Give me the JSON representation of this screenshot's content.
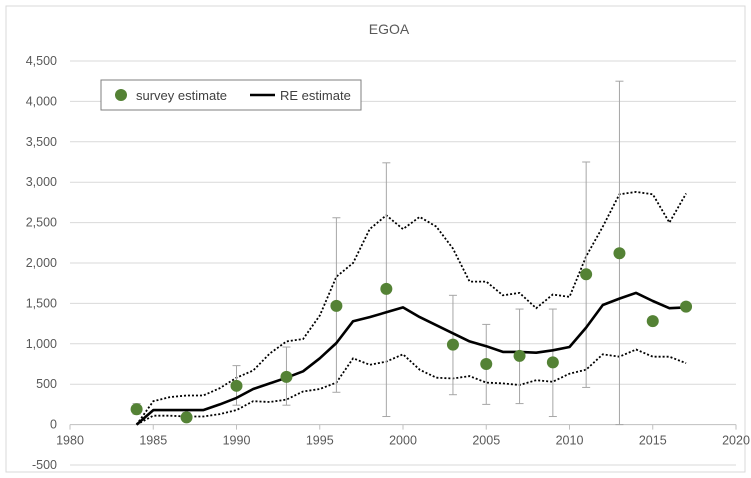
{
  "chart_data": {
    "type": "scatter",
    "title": "EGOA",
    "xlabel": "",
    "ylabel": "",
    "xlim": [
      1980,
      2020
    ],
    "ylim": [
      -500,
      4500
    ],
    "x_ticks": [
      1980,
      1985,
      1990,
      1995,
      2000,
      2005,
      2010,
      2015,
      2020
    ],
    "y_ticks": [
      -500,
      0,
      500,
      1000,
      1500,
      2000,
      2500,
      3000,
      3500,
      4000,
      4500
    ],
    "y_tick_labels": [
      "-500",
      "0",
      "500",
      "1,000",
      "1,500",
      "2,000",
      "2,500",
      "3,000",
      "3,500",
      "4,000",
      "4,500"
    ],
    "grid": "horizontal",
    "legend_position": "top-left",
    "colors": {
      "survey": "#548235",
      "re": "#000000",
      "ci": "#000000",
      "error_bar": "#a6a6a6"
    },
    "series": [
      {
        "name": "survey estimate",
        "type": "scatter",
        "x": [
          1984,
          1987,
          1990,
          1993,
          1996,
          1999,
          2003,
          2005,
          2007,
          2009,
          2011,
          2013,
          2015,
          2017
        ],
        "values": [
          190,
          90,
          480,
          590,
          1470,
          1680,
          990,
          750,
          850,
          770,
          1860,
          2120,
          1280,
          1460
        ],
        "lower": [
          130,
          40,
          240,
          240,
          400,
          100,
          370,
          250,
          260,
          100,
          460,
          0,
          1280,
          1460
        ],
        "upper": [
          260,
          150,
          730,
          960,
          2560,
          3240,
          1600,
          1240,
          1430,
          1430,
          3250,
          4250,
          1280,
          1460
        ]
      },
      {
        "name": "RE estimate",
        "type": "line",
        "x": [
          1984,
          1985,
          1986,
          1987,
          1988,
          1989,
          1990,
          1991,
          1992,
          1993,
          1994,
          1995,
          1996,
          1997,
          1998,
          1999,
          2000,
          2001,
          2002,
          2003,
          2004,
          2005,
          2006,
          2007,
          2008,
          2009,
          2010,
          2011,
          2012,
          2013,
          2014,
          2015,
          2016,
          2017
        ],
        "values": [
          0,
          180,
          180,
          180,
          180,
          250,
          330,
          440,
          510,
          580,
          660,
          820,
          1010,
          1280,
          1330,
          1390,
          1450,
          1330,
          1230,
          1130,
          1030,
          970,
          900,
          900,
          890,
          920,
          960,
          1200,
          1480,
          1560,
          1630,
          1530,
          1440,
          1450
        ]
      },
      {
        "type": "line",
        "style": "dotted",
        "x": [
          1984,
          1985,
          1986,
          1987,
          1988,
          1989,
          1990,
          1991,
          1992,
          1993,
          1994,
          1995,
          1996,
          1997,
          1998,
          1999,
          2000,
          2001,
          2002,
          2003,
          2004,
          2005,
          2006,
          2007,
          2008,
          2009,
          2010,
          2011,
          2012,
          2013,
          2014,
          2015,
          2016,
          2017
        ],
        "values": [
          0,
          290,
          340,
          360,
          360,
          450,
          580,
          670,
          880,
          1030,
          1060,
          1350,
          1830,
          2000,
          2420,
          2590,
          2420,
          2570,
          2450,
          2180,
          1770,
          1770,
          1600,
          1630,
          1440,
          1610,
          1580,
          2080,
          2450,
          2850,
          2880,
          2850,
          2500,
          2860
        ]
      },
      {
        "type": "line",
        "style": "dotted",
        "x": [
          1984,
          1985,
          1986,
          1987,
          1988,
          1989,
          1990,
          1991,
          1992,
          1993,
          1994,
          1995,
          1996,
          1997,
          1998,
          1999,
          2000,
          2001,
          2002,
          2003,
          2004,
          2005,
          2006,
          2007,
          2008,
          2009,
          2010,
          2011,
          2012,
          2013,
          2014,
          2015,
          2016,
          2017
        ],
        "values": [
          0,
          110,
          110,
          100,
          100,
          130,
          180,
          290,
          280,
          310,
          410,
          440,
          520,
          820,
          740,
          780,
          870,
          680,
          580,
          570,
          600,
          520,
          510,
          490,
          550,
          530,
          630,
          680,
          870,
          840,
          930,
          840,
          840,
          760
        ]
      }
    ]
  }
}
